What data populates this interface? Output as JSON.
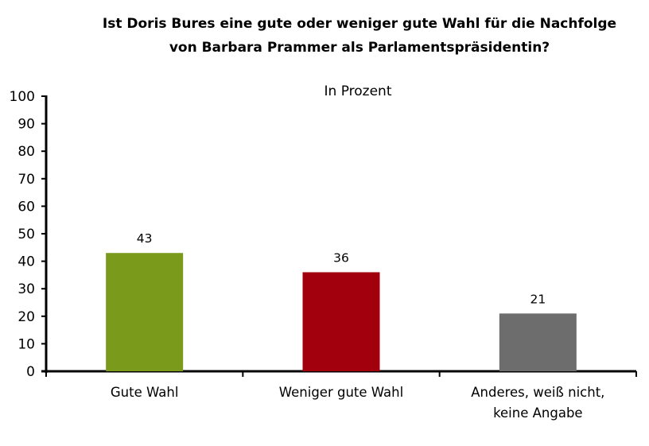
{
  "chart_data": {
    "type": "bar",
    "title_lines": [
      "Ist Doris Bures eine gute oder weniger gute Wahl für die Nachfolge",
      "von Barbara Prammer als Parlamentspräsidentin?"
    ],
    "subtitle": "In Prozent",
    "categories": [
      [
        "Gute Wahl"
      ],
      [
        "Weniger gute Wahl"
      ],
      [
        "Anderes, weiß nicht,",
        "keine Angabe"
      ]
    ],
    "values": [
      43,
      36,
      21
    ],
    "colors": [
      "#7a9a1c",
      "#a3000e",
      "#6d6d6d"
    ],
    "ylim": [
      0,
      100
    ],
    "yticks": [
      0,
      10,
      20,
      30,
      40,
      50,
      60,
      70,
      80,
      90,
      100
    ],
    "grid": false,
    "data_labels": true
  }
}
